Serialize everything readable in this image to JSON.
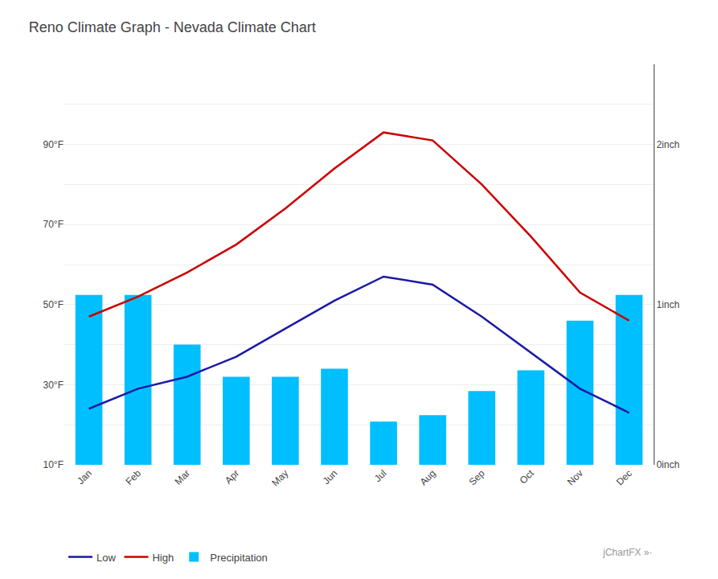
{
  "chart_data": {
    "type": "bar",
    "title": "Reno Climate Graph - Nevada Climate Chart",
    "categories": [
      "Jan",
      "Feb",
      "Mar",
      "Apr",
      "May",
      "Jun",
      "Jul",
      "Aug",
      "Sep",
      "Oct",
      "Nov",
      "Dec"
    ],
    "series": [
      {
        "name": "Low",
        "type": "line",
        "color": "#1A1AA6",
        "values": [
          24,
          29,
          32,
          37,
          44,
          51,
          57,
          55,
          47,
          38,
          29,
          23
        ]
      },
      {
        "name": "High",
        "type": "line",
        "color": "#CC0000",
        "values": [
          47,
          52,
          58,
          65,
          74,
          84,
          93,
          91,
          80,
          67,
          53,
          46
        ]
      },
      {
        "name": "Precipitation",
        "type": "bar",
        "axis": "y2",
        "color": "#00BFFF",
        "values": [
          1.06,
          1.06,
          0.75,
          0.55,
          0.55,
          0.6,
          0.27,
          0.31,
          0.46,
          0.59,
          0.9,
          1.06
        ]
      }
    ],
    "ylim": [
      10,
      110
    ],
    "yticks": [
      {
        "value": 10,
        "label": "10°F"
      },
      {
        "value": 20,
        "label": ""
      },
      {
        "value": 30,
        "label": "30°F"
      },
      {
        "value": 40,
        "label": ""
      },
      {
        "value": 50,
        "label": "50°F"
      },
      {
        "value": 60,
        "label": ""
      },
      {
        "value": 70,
        "label": "70°F"
      },
      {
        "value": 80,
        "label": ""
      },
      {
        "value": 90,
        "label": "90°F"
      },
      {
        "value": 100,
        "label": ""
      },
      {
        "value": 110,
        "label": ""
      }
    ],
    "y2lim": [
      0,
      2.5
    ],
    "y2ticks": [
      {
        "value": 0,
        "label": "0inch"
      },
      {
        "value": 1,
        "label": "1inch"
      },
      {
        "value": 2,
        "label": "2inch"
      }
    ],
    "grid": true,
    "legend": "bottom",
    "annotations": [
      "jChartFX »·"
    ]
  }
}
